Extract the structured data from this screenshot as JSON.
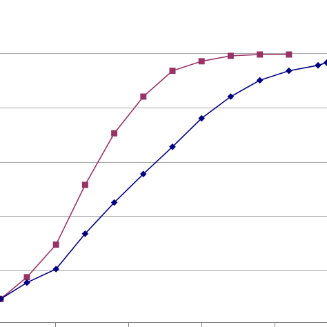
{
  "chart_data": {
    "type": "line",
    "title": "",
    "xlabel": "",
    "ylabel": "",
    "grid": true,
    "grid_orientation": "horizontal",
    "xlim": [
      0,
      11
    ],
    "ylim": [
      0,
      1.2
    ],
    "yticks": [
      0.2,
      0.4,
      0.6,
      0.8,
      1.0
    ],
    "series": [
      {
        "color": "#993366",
        "marker": "square",
        "x": [
          0,
          0.9,
          1.9,
          2.9,
          3.9,
          4.9,
          5.9,
          6.9,
          7.9,
          8.9,
          9.9
        ],
        "y": [
          0.095,
          0.175,
          0.295,
          0.515,
          0.705,
          0.84,
          0.935,
          0.97,
          0.99,
          0.995,
          0.995
        ]
      },
      {
        "color": "#000080",
        "marker": "diamond",
        "x": [
          0,
          0.9,
          1.9,
          2.9,
          3.9,
          4.9,
          5.9,
          6.9,
          7.9,
          8.9,
          9.9,
          10.9,
          11.2
        ],
        "y": [
          0.095,
          0.155,
          0.205,
          0.335,
          0.45,
          0.555,
          0.655,
          0.76,
          0.84,
          0.9,
          0.935,
          0.955,
          0.965
        ]
      }
    ]
  }
}
